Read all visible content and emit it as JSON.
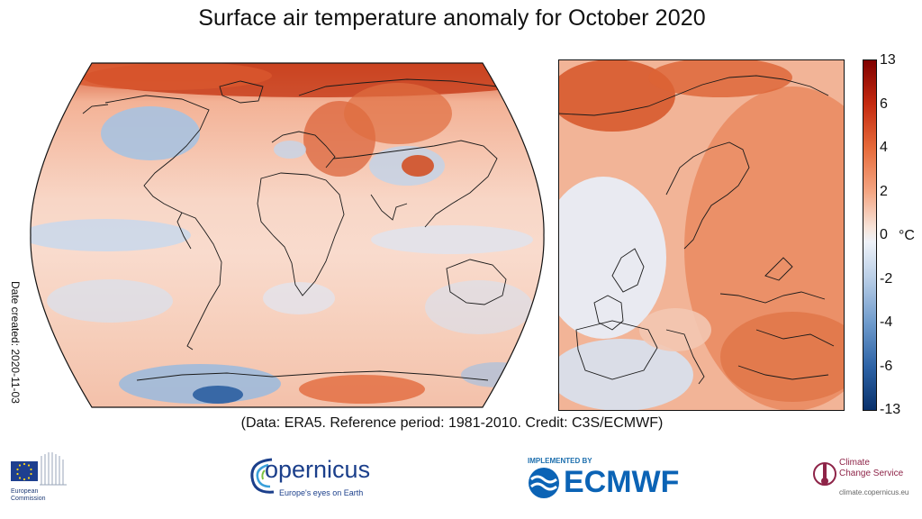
{
  "title": "Surface air temperature anomaly for October 2020",
  "date_created": "Date created: 2020-11-03",
  "credit": "(Data: ERA5.  Reference period: 1981-2010.  Credit: C3S/ECMWF)",
  "colorbar": {
    "unit": "°C",
    "ticks": [
      "13",
      "6",
      "4",
      "2",
      "0",
      "-2",
      "-4",
      "-6",
      "-13"
    ],
    "colors_top_to_bottom": [
      "#7f0000",
      "#c42a10",
      "#e66a3a",
      "#f4a582",
      "#f7e4da",
      "#ffffff",
      "#e6ecf5",
      "#b8cde6",
      "#6f9bcc",
      "#2d63a6",
      "#08306b"
    ]
  },
  "maps": [
    {
      "name": "global",
      "projection": "Robinson"
    },
    {
      "name": "europe",
      "projection": "regional"
    }
  ],
  "logos": {
    "eu": {
      "line1": "European",
      "line2": "Commission"
    },
    "copernicus": {
      "word": "opernicus",
      "tagline": "Europe's eyes on Earth"
    },
    "ecmwf": {
      "top": "IMPLEMENTED BY",
      "word": "ECMWF"
    },
    "c3s": {
      "line1": "Climate",
      "line2": "Change Service",
      "url": "climate.copernicus.eu"
    }
  }
}
